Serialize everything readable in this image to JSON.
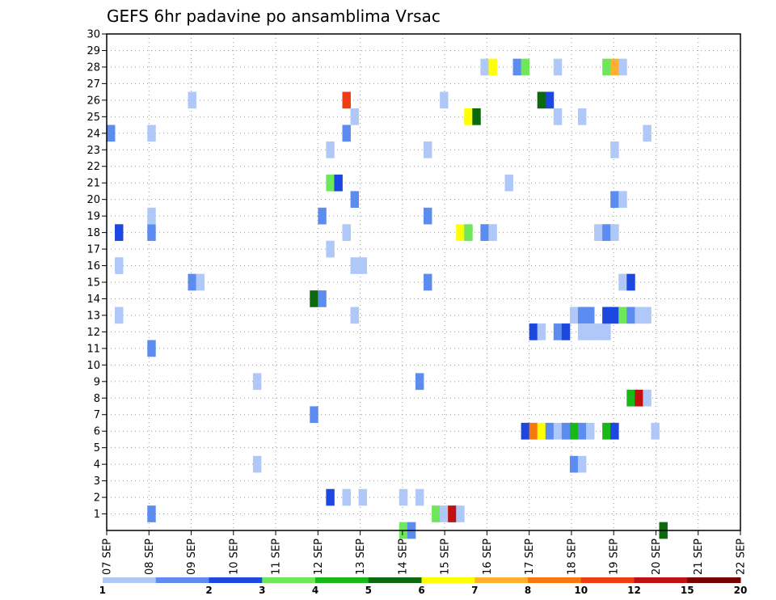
{
  "chart_data": {
    "type": "heatmap",
    "title": "GEFS 6hr padavine po ansamblima Vrsac",
    "xlabel": "",
    "ylabel": "",
    "x_tick_labels": [
      "07 SEP",
      "08 SEP",
      "09 SEP",
      "10 SEP",
      "11 SEP",
      "12 SEP",
      "13 SEP",
      "14 SEP",
      "15 SEP",
      "16 SEP",
      "17 SEP",
      "18 SEP",
      "19 SEP",
      "20 SEP",
      "21 SEP",
      "22 SEP"
    ],
    "y_tick_labels": [
      "1",
      "2",
      "3",
      "4",
      "5",
      "6",
      "7",
      "8",
      "9",
      "10",
      "11",
      "12",
      "13",
      "14",
      "15",
      "16",
      "17",
      "18",
      "19",
      "20",
      "21",
      "22",
      "23",
      "24",
      "25",
      "26",
      "27",
      "28",
      "29",
      "30"
    ],
    "xlim": [
      0,
      60
    ],
    "ylim": [
      0,
      30
    ],
    "grid": true,
    "legend": {
      "placement": "bottom",
      "labels": [
        "1",
        "2",
        "3",
        "4",
        "5",
        "6",
        "7",
        "8",
        "10",
        "12",
        "15",
        "20"
      ],
      "colors": [
        "#b0c8f8",
        "#5c8cf0",
        "#1c48e0",
        "#6ee85a",
        "#18b818",
        "#0c6a0c",
        "#ffff00",
        "#ffb030",
        "#f87810",
        "#f03c14",
        "#c01010",
        "#780000"
      ]
    },
    "cells": [
      {
        "t": 1,
        "m": 24,
        "c": 1
      },
      {
        "t": 6,
        "m": 24,
        "c": 0
      },
      {
        "t": 2,
        "m": 18,
        "c": 2
      },
      {
        "t": 6,
        "m": 18,
        "c": 1
      },
      {
        "t": 6,
        "m": 19,
        "c": 0
      },
      {
        "t": 2,
        "m": 16,
        "c": 0
      },
      {
        "t": 2,
        "m": 13,
        "c": 0
      },
      {
        "t": 6,
        "m": 11,
        "c": 1
      },
      {
        "t": 6,
        "m": 1,
        "c": 1
      },
      {
        "t": 11,
        "m": 26,
        "c": 0
      },
      {
        "t": 11,
        "m": 15,
        "c": 1
      },
      {
        "t": 12,
        "m": 15,
        "c": 0
      },
      {
        "t": 19,
        "m": 9,
        "c": 0
      },
      {
        "t": 19,
        "m": 4,
        "c": 0
      },
      {
        "t": 26,
        "m": 14,
        "c": 5
      },
      {
        "t": 27,
        "m": 14,
        "c": 1
      },
      {
        "t": 26,
        "m": 7,
        "c": 1
      },
      {
        "t": 27,
        "m": 19,
        "c": 1
      },
      {
        "t": 30,
        "m": 26,
        "c": 9
      },
      {
        "t": 30,
        "m": 24,
        "c": 1
      },
      {
        "t": 28,
        "m": 23,
        "c": 0
      },
      {
        "t": 28,
        "m": 21,
        "c": 3
      },
      {
        "t": 29,
        "m": 21,
        "c": 2
      },
      {
        "t": 31,
        "m": 20,
        "c": 1
      },
      {
        "t": 30,
        "m": 18,
        "c": 0
      },
      {
        "t": 28,
        "m": 17,
        "c": 0
      },
      {
        "t": 31,
        "m": 16,
        "c": 0
      },
      {
        "t": 32,
        "m": 16,
        "c": 0
      },
      {
        "t": 31,
        "m": 13,
        "c": 0
      },
      {
        "t": 31,
        "m": 25,
        "c": 0
      },
      {
        "t": 28,
        "m": 2,
        "c": 2
      },
      {
        "t": 30,
        "m": 2,
        "c": 0
      },
      {
        "t": 32,
        "m": 2,
        "c": 0
      },
      {
        "t": 37,
        "m": 2,
        "c": 0
      },
      {
        "t": 39,
        "m": 2,
        "c": 0
      },
      {
        "t": 39,
        "m": 9,
        "c": 1
      },
      {
        "t": 37,
        "m": 0,
        "c": 3
      },
      {
        "t": 38,
        "m": 0,
        "c": 1
      },
      {
        "t": 40,
        "m": 23,
        "c": 0
      },
      {
        "t": 40,
        "m": 19,
        "c": 1
      },
      {
        "t": 40,
        "m": 15,
        "c": 1
      },
      {
        "t": 41,
        "m": 1,
        "c": 3
      },
      {
        "t": 42,
        "m": 1,
        "c": 0
      },
      {
        "t": 43,
        "m": 1,
        "c": 10
      },
      {
        "t": 44,
        "m": 1,
        "c": 0
      },
      {
        "t": 42,
        "m": 26,
        "c": 0
      },
      {
        "t": 45,
        "m": 25,
        "c": 6
      },
      {
        "t": 46,
        "m": 25,
        "c": 5
      },
      {
        "t": 44,
        "m": 18,
        "c": 6
      },
      {
        "t": 45,
        "m": 18,
        "c": 3
      },
      {
        "t": 47,
        "m": 28,
        "c": 0
      },
      {
        "t": 48,
        "m": 28,
        "c": 6
      },
      {
        "t": 47,
        "m": 18,
        "c": 1
      },
      {
        "t": 48,
        "m": 18,
        "c": 0
      },
      {
        "t": 50,
        "m": 21,
        "c": 0
      },
      {
        "t": 51,
        "m": 28,
        "c": 1
      },
      {
        "t": 52,
        "m": 28,
        "c": 3
      },
      {
        "t": 54,
        "m": 26,
        "c": 5
      },
      {
        "t": 55,
        "m": 26,
        "c": 2
      },
      {
        "t": 52,
        "m": 6,
        "c": 2
      },
      {
        "t": 53,
        "m": 6,
        "c": 8
      },
      {
        "t": 54,
        "m": 6,
        "c": 6
      },
      {
        "t": 55,
        "m": 6,
        "c": 1
      },
      {
        "t": 56,
        "m": 6,
        "c": 0
      },
      {
        "t": 57,
        "m": 6,
        "c": 1
      },
      {
        "t": 58,
        "m": 6,
        "c": 4
      },
      {
        "t": 59,
        "m": 6,
        "c": 1
      },
      {
        "t": 60,
        "m": 6,
        "c": 0
      },
      {
        "t": 53,
        "m": 12,
        "c": 2
      },
      {
        "t": 54,
        "m": 12,
        "c": 0
      },
      {
        "t": 56,
        "m": 28,
        "c": 0
      },
      {
        "t": 56,
        "m": 25,
        "c": 0
      },
      {
        "t": 59,
        "m": 25,
        "c": 0
      },
      {
        "t": 56,
        "m": 12,
        "c": 1
      },
      {
        "t": 57,
        "m": 12,
        "c": 2
      },
      {
        "t": 58,
        "m": 13,
        "c": 0
      },
      {
        "t": 59,
        "m": 13,
        "c": 1
      },
      {
        "t": 60,
        "m": 13,
        "c": 1
      },
      {
        "t": 59,
        "m": 12,
        "c": 0
      },
      {
        "t": 60,
        "m": 12,
        "c": 0
      },
      {
        "t": 61,
        "m": 12,
        "c": 0
      },
      {
        "t": 62,
        "m": 12,
        "c": 0
      },
      {
        "t": 58,
        "m": 4,
        "c": 1
      },
      {
        "t": 59,
        "m": 4,
        "c": 0
      },
      {
        "t": 62,
        "m": 28,
        "c": 3
      },
      {
        "t": 63,
        "m": 28,
        "c": 7
      },
      {
        "t": 64,
        "m": 28,
        "c": 0
      },
      {
        "t": 61,
        "m": 18,
        "c": 0
      },
      {
        "t": 62,
        "m": 18,
        "c": 1
      },
      {
        "t": 63,
        "m": 18,
        "c": 0
      },
      {
        "t": 63,
        "m": 23,
        "c": 0
      },
      {
        "t": 63,
        "m": 20,
        "c": 1
      },
      {
        "t": 64,
        "m": 20,
        "c": 0
      },
      {
        "t": 62,
        "m": 13,
        "c": 2
      },
      {
        "t": 63,
        "m": 13,
        "c": 2
      },
      {
        "t": 64,
        "m": 13,
        "c": 3
      },
      {
        "t": 65,
        "m": 13,
        "c": 1
      },
      {
        "t": 66,
        "m": 13,
        "c": 0
      },
      {
        "t": 67,
        "m": 13,
        "c": 0
      },
      {
        "t": 62,
        "m": 6,
        "c": 4
      },
      {
        "t": 63,
        "m": 6,
        "c": 2
      },
      {
        "t": 64,
        "m": 15,
        "c": 0
      },
      {
        "t": 65,
        "m": 15,
        "c": 2
      },
      {
        "t": 67,
        "m": 24,
        "c": 0
      },
      {
        "t": 65,
        "m": 8,
        "c": 4
      },
      {
        "t": 66,
        "m": 8,
        "c": 10
      },
      {
        "t": 67,
        "m": 8,
        "c": 0
      },
      {
        "t": 68,
        "m": 6,
        "c": 0
      },
      {
        "t": 69,
        "m": 0,
        "c": 5
      }
    ]
  }
}
